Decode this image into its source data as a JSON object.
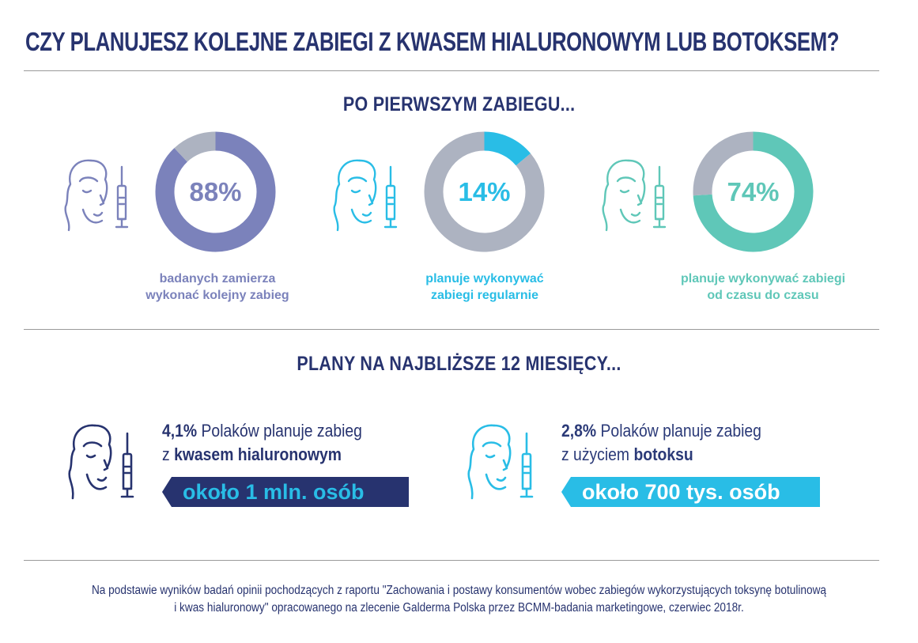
{
  "header": {
    "title": "CZY PLANUJESZ KOLEJNE ZABIEGI Z KWASEM HIALURONOWYM LUB BOTOKSEM?"
  },
  "section1": {
    "title": "PO PIERWSZYM ZABIEGU..."
  },
  "section2": {
    "title": "PLANY NA NAJBLIŻSZE 12 MIESIĘCY..."
  },
  "colors": {
    "purple": "#7b82bb",
    "blue": "#29bde6",
    "teal": "#5fc7b8",
    "gray": "#adb3c1",
    "navy": "#27336f"
  },
  "chart_data": [
    {
      "type": "pie",
      "style": "donut",
      "categories": [
        "",
        ""
      ],
      "values": [
        88,
        12
      ],
      "label": "88%",
      "caption_line1": "badanych zamierza",
      "caption_line2": "wykonać kolejny zabieg",
      "color": "#7b82bb",
      "rest_color": "#adb3c1"
    },
    {
      "type": "pie",
      "style": "donut",
      "categories": [
        "",
        ""
      ],
      "values": [
        14,
        86
      ],
      "label": "14%",
      "caption_line1": "planuje wykonywać",
      "caption_line2": "zabiegi regularnie",
      "color": "#29bde6",
      "rest_color": "#adb3c1"
    },
    {
      "type": "pie",
      "style": "donut",
      "categories": [
        "",
        ""
      ],
      "values": [
        74,
        26
      ],
      "label": "74%",
      "caption_line1": "planuje wykonywać zabiegi",
      "caption_line2": "od czasu do czasu",
      "color": "#5fc7b8",
      "rest_color": "#adb3c1"
    }
  ],
  "plans": [
    {
      "percent": "4,1%",
      "line1_rest": " Polaków planuje zabieg",
      "line2_prefix": "z ",
      "line2_bold": "kwasem hialuronowym",
      "banner": "około 1 mln. osób",
      "color": "#27336f"
    },
    {
      "percent": "2,8%",
      "line1_rest": " Polaków planuje zabieg",
      "line2_prefix": "z użyciem ",
      "line2_bold": "botoksu",
      "banner": "około 700 tys. osób",
      "color": "#29bde6"
    }
  ],
  "footer": {
    "line1": "Na podstawie wyników badań opinii pochodzących z raportu \"Zachowania i postawy konsumentów wobec zabiegów wykorzystujących toksynę botulinową",
    "line2": "i kwas hialuronowy\" opracowanego na zlecenie Galderma Polska przez BCMM-badania marketingowe, czerwiec 2018r."
  }
}
